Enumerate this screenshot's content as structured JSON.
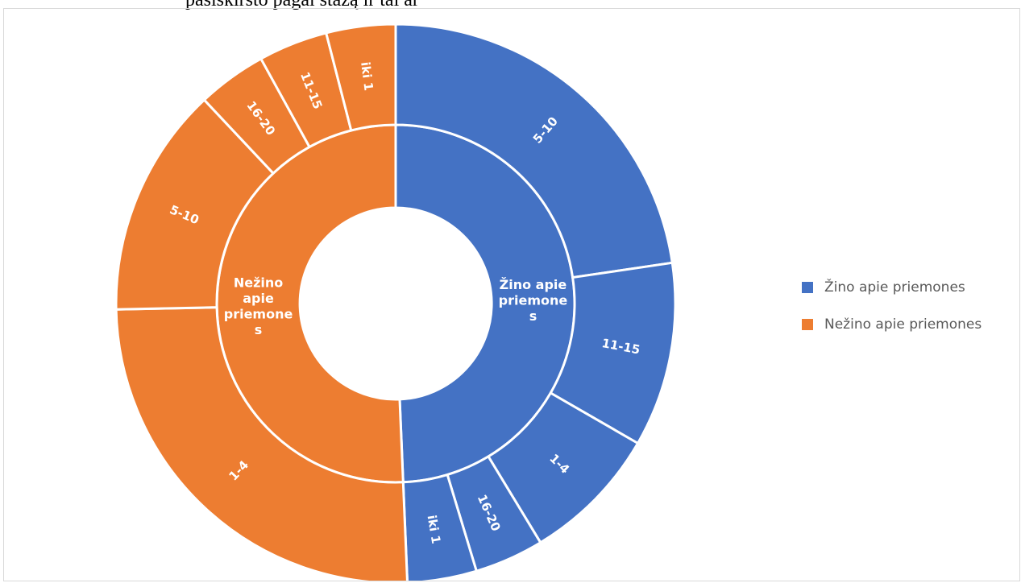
{
  "page": {
    "top_text": "pasiskirsto pagal stažą ir tai ar"
  },
  "colors": {
    "blue": "#4472C4",
    "orange": "#ED7D31",
    "separator": "#ffffff"
  },
  "chart_data": {
    "type": "sunburst",
    "title": "",
    "legend_position": "right",
    "series": [
      {
        "name": "Žino apie priemones",
        "label_lines": [
          "Žino apie",
          "priemone",
          "s"
        ],
        "color": "#4472C4",
        "children": [
          {
            "label": "5-10",
            "value": 17
          },
          {
            "label": "11-15",
            "value": 8
          },
          {
            "label": "1-4",
            "value": 6
          },
          {
            "label": "16-20",
            "value": 3
          },
          {
            "label": "iki 1",
            "value": 3
          }
        ]
      },
      {
        "name": "Nežino apie priemones",
        "label_lines": [
          "Nežino",
          "apie",
          "priemone",
          "s"
        ],
        "color": "#ED7D31",
        "children": [
          {
            "label": "1-4",
            "value": 19
          },
          {
            "label": "5-10",
            "value": 10
          },
          {
            "label": "16-20",
            "value": 3
          },
          {
            "label": "11-15",
            "value": 3
          },
          {
            "label": "iki 1",
            "value": 3
          }
        ]
      }
    ],
    "legend": [
      "Žino apie priemones",
      "Nežino apie priemones"
    ]
  }
}
